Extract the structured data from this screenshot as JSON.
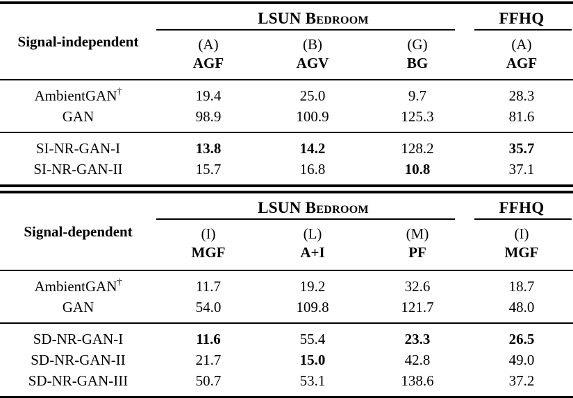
{
  "page": {
    "background": "#ffffff",
    "text_color": "#000000"
  },
  "tables": [
    {
      "stub": "Signal-independent",
      "col_groups": [
        {
          "title": "LSUN Bedroom",
          "columns": [
            {
              "tag": "(A)",
              "name": "AGF"
            },
            {
              "tag": "(B)",
              "name": "AGV"
            },
            {
              "tag": "(G)",
              "name": "BG"
            }
          ]
        },
        {
          "title": "FFHQ",
          "columns": [
            {
              "tag": "(A)",
              "name": "AGF"
            }
          ]
        }
      ],
      "row_groups": [
        {
          "rows": [
            {
              "label": "AmbientGAN",
              "sup": "†",
              "values": [
                "19.4",
                "25.0",
                "9.7",
                "28.3"
              ],
              "bold": [
                false,
                false,
                false,
                false
              ]
            },
            {
              "label": "GAN",
              "sup": "",
              "values": [
                "98.9",
                "100.9",
                "125.3",
                "81.6"
              ],
              "bold": [
                false,
                false,
                false,
                false
              ]
            }
          ]
        },
        {
          "rows": [
            {
              "label": "SI-NR-GAN-I",
              "sup": "",
              "values": [
                "13.8",
                "14.2",
                "128.2",
                "35.7"
              ],
              "bold": [
                true,
                true,
                false,
                true
              ]
            },
            {
              "label": "SI-NR-GAN-II",
              "sup": "",
              "values": [
                "15.7",
                "16.8",
                "10.8",
                "37.1"
              ],
              "bold": [
                false,
                false,
                true,
                false
              ]
            }
          ]
        }
      ]
    },
    {
      "stub": "Signal-dependent",
      "col_groups": [
        {
          "title": "LSUN Bedroom",
          "columns": [
            {
              "tag": "(I)",
              "name": "MGF"
            },
            {
              "tag": "(L)",
              "name": "A+I"
            },
            {
              "tag": "(M)",
              "name": "PF"
            }
          ]
        },
        {
          "title": "FFHQ",
          "columns": [
            {
              "tag": "(I)",
              "name": "MGF"
            }
          ]
        }
      ],
      "row_groups": [
        {
          "rows": [
            {
              "label": "AmbientGAN",
              "sup": "†",
              "values": [
                "11.7",
                "19.2",
                "32.6",
                "18.7"
              ],
              "bold": [
                false,
                false,
                false,
                false
              ]
            },
            {
              "label": "GAN",
              "sup": "",
              "values": [
                "54.0",
                "109.8",
                "121.7",
                "48.0"
              ],
              "bold": [
                false,
                false,
                false,
                false
              ]
            }
          ]
        },
        {
          "rows": [
            {
              "label": "SD-NR-GAN-I",
              "sup": "",
              "values": [
                "11.6",
                "55.4",
                "23.3",
                "26.5"
              ],
              "bold": [
                true,
                false,
                true,
                true
              ]
            },
            {
              "label": "SD-NR-GAN-II",
              "sup": "",
              "values": [
                "21.7",
                "15.0",
                "42.8",
                "49.0"
              ],
              "bold": [
                false,
                true,
                false,
                false
              ]
            },
            {
              "label": "SD-NR-GAN-III",
              "sup": "",
              "values": [
                "50.7",
                "53.1",
                "138.6",
                "37.2"
              ],
              "bold": [
                false,
                false,
                false,
                false
              ]
            }
          ]
        }
      ]
    }
  ]
}
